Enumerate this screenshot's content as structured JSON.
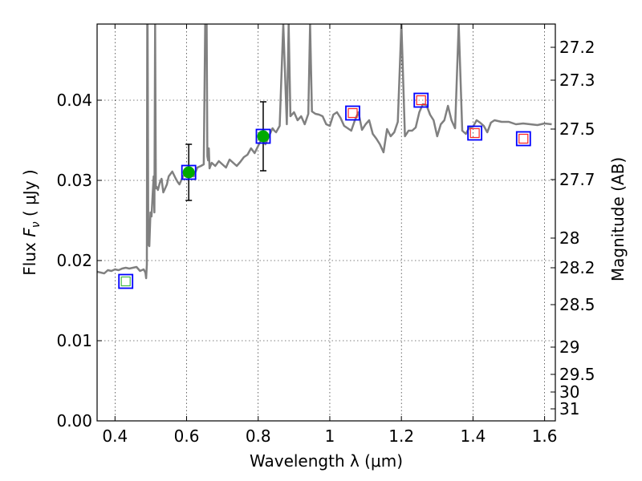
{
  "chart_data": {
    "type": "line",
    "xlabel": "Wavelength  λ (μm)",
    "ylabel": "Flux  F_ν  ( μJy )",
    "ylabel_parts": {
      "pre": "Flux  ",
      "sym": "F",
      "sub": "ν",
      "post": "  ( μJy )"
    },
    "y2label": "Magnitude (AB)",
    "xlim": [
      0.35,
      1.63
    ],
    "ylim": [
      0.0,
      0.0495
    ],
    "x_ticks": [
      0.4,
      0.6,
      0.8,
      1.0,
      1.2,
      1.4,
      1.6
    ],
    "x_tick_labels": [
      "0.4",
      "0.6",
      "0.8",
      "1",
      "1.2",
      "1.4",
      "1.6"
    ],
    "y_ticks": [
      0.0,
      0.01,
      0.02,
      0.03,
      0.04
    ],
    "y_tick_labels": [
      "0.00",
      "0.01",
      "0.02",
      "0.03",
      "0.04"
    ],
    "y2_tick_flux": [
      0.0466,
      0.0425,
      0.0364,
      0.0301,
      0.0228,
      0.0191,
      0.0145,
      0.0092,
      0.0058,
      0.0036,
      0.0015
    ],
    "y2_tick_labels": [
      "27.2",
      "27.3",
      "27.5",
      "27.7",
      "28",
      "28.2",
      "28.5",
      "29",
      "29.5",
      "30",
      "31"
    ],
    "grid": true,
    "series": [
      {
        "style": "sed-model-line",
        "x": [
          0.35,
          0.37,
          0.38,
          0.39,
          0.4,
          0.41,
          0.42,
          0.43,
          0.44,
          0.45,
          0.46,
          0.47,
          0.48,
          0.485,
          0.487,
          0.489,
          0.49,
          0.491,
          0.493,
          0.496,
          0.499,
          0.502,
          0.505,
          0.508,
          0.51,
          0.512,
          0.514,
          0.516,
          0.52,
          0.525,
          0.53,
          0.535,
          0.54,
          0.545,
          0.55,
          0.56,
          0.57,
          0.575,
          0.58,
          0.59,
          0.6,
          0.61,
          0.62,
          0.63,
          0.64,
          0.648,
          0.652,
          0.654,
          0.656,
          0.658,
          0.66,
          0.662,
          0.664,
          0.67,
          0.68,
          0.69,
          0.7,
          0.71,
          0.72,
          0.73,
          0.74,
          0.75,
          0.76,
          0.77,
          0.78,
          0.79,
          0.8,
          0.81,
          0.82,
          0.83,
          0.84,
          0.845,
          0.85,
          0.86,
          0.87,
          0.88,
          0.885,
          0.89,
          0.9,
          0.91,
          0.92,
          0.93,
          0.94,
          0.945,
          0.95,
          0.96,
          0.97,
          0.98,
          0.99,
          1.0,
          1.01,
          1.02,
          1.03,
          1.04,
          1.05,
          1.06,
          1.07,
          1.08,
          1.09,
          1.1,
          1.11,
          1.12,
          1.13,
          1.14,
          1.15,
          1.16,
          1.17,
          1.18,
          1.19,
          1.2,
          1.21,
          1.22,
          1.23,
          1.24,
          1.25,
          1.26,
          1.27,
          1.28,
          1.29,
          1.3,
          1.31,
          1.32,
          1.33,
          1.34,
          1.35,
          1.36,
          1.37,
          1.38,
          1.39,
          1.4,
          1.41,
          1.42,
          1.43,
          1.44,
          1.45,
          1.46,
          1.47,
          1.48,
          1.5,
          1.52,
          1.54,
          1.56,
          1.58,
          1.6,
          1.62
        ],
        "y": [
          0.0186,
          0.0184,
          0.0188,
          0.0187,
          0.0189,
          0.0188,
          0.019,
          0.0191,
          0.019,
          0.0191,
          0.0192,
          0.0187,
          0.0189,
          0.0185,
          0.0178,
          0.0195,
          0.0495,
          0.0495,
          0.022,
          0.0218,
          0.026,
          0.0255,
          0.028,
          0.0305,
          0.026,
          0.0495,
          0.029,
          0.0292,
          0.0288,
          0.0297,
          0.0302,
          0.0285,
          0.029,
          0.0295,
          0.0305,
          0.0311,
          0.0302,
          0.0298,
          0.0295,
          0.0305,
          0.0312,
          0.0315,
          0.0305,
          0.0316,
          0.0318,
          0.032,
          0.0495,
          0.0495,
          0.0495,
          0.033,
          0.0325,
          0.034,
          0.0315,
          0.0322,
          0.0318,
          0.0324,
          0.032,
          0.0316,
          0.0326,
          0.0322,
          0.0318,
          0.0323,
          0.0329,
          0.0332,
          0.034,
          0.0334,
          0.0343,
          0.0352,
          0.0345,
          0.0355,
          0.0365,
          0.0362,
          0.036,
          0.0368,
          0.0495,
          0.037,
          0.0495,
          0.038,
          0.0385,
          0.0375,
          0.038,
          0.037,
          0.0383,
          0.0495,
          0.0386,
          0.0383,
          0.0382,
          0.038,
          0.037,
          0.0368,
          0.0382,
          0.0385,
          0.0378,
          0.0368,
          0.0365,
          0.0362,
          0.0375,
          0.0385,
          0.0363,
          0.037,
          0.0375,
          0.0358,
          0.0352,
          0.0345,
          0.0335,
          0.0364,
          0.0355,
          0.036,
          0.0373,
          0.0495,
          0.0355,
          0.0362,
          0.0362,
          0.0366,
          0.0385,
          0.0395,
          0.0394,
          0.0382,
          0.0375,
          0.0355,
          0.037,
          0.0375,
          0.0393,
          0.0375,
          0.0365,
          0.0495,
          0.0362,
          0.0358,
          0.0366,
          0.0367,
          0.0375,
          0.0372,
          0.0368,
          0.036,
          0.0372,
          0.0375,
          0.0374,
          0.0373,
          0.0373,
          0.037,
          0.0371,
          0.037,
          0.0369,
          0.0371,
          0.037
        ]
      }
    ],
    "photometry": [
      {
        "x": 0.43,
        "model": 0.0174,
        "observed": null,
        "err": null,
        "kind": "upper"
      },
      {
        "x": 0.606,
        "model": 0.031,
        "observed": 0.031,
        "err": 0.0035,
        "kind": "detection"
      },
      {
        "x": 0.814,
        "model": 0.0355,
        "observed": 0.0355,
        "err": 0.0043,
        "kind": "detection"
      },
      {
        "x": 1.064,
        "model": 0.0384,
        "observed": null,
        "err": null,
        "kind": "model"
      },
      {
        "x": 1.255,
        "model": 0.04,
        "observed": null,
        "err": null,
        "kind": "model"
      },
      {
        "x": 1.405,
        "model": 0.0359,
        "observed": null,
        "err": null,
        "kind": "model"
      },
      {
        "x": 1.541,
        "model": 0.0352,
        "observed": null,
        "err": null,
        "kind": "model"
      }
    ],
    "colors": {
      "model_line": "#808080",
      "model_box": "#0000ff",
      "detection": "#00aa00",
      "upper_limit_inner": "#44bb44",
      "model_inner": "#ff2222",
      "error_bar": "#000000"
    }
  }
}
